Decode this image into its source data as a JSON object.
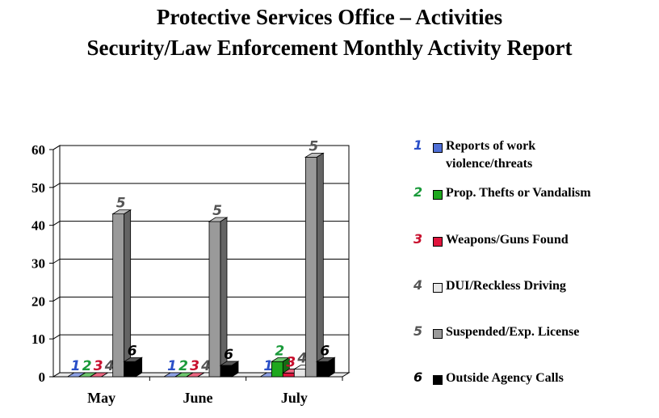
{
  "title": {
    "line1": "Protective Services Office – Activities",
    "line2": "Security/Law Enforcement Monthly Activity Report"
  },
  "chart_data": {
    "type": "bar",
    "style": "3d-clustered",
    "categories": [
      "May",
      "June",
      "July"
    ],
    "ylim": [
      0,
      60
    ],
    "yticks": [
      0,
      10,
      20,
      30,
      40,
      50,
      60
    ],
    "grid": true,
    "legend_position": "right",
    "series": [
      {
        "id": "1",
        "name": "Reports of work violence/threats",
        "color": "#4f6fd6",
        "label_color": "#2a4fc8",
        "values": [
          0,
          0,
          0
        ]
      },
      {
        "id": "2",
        "name": "Prop. Thefts or Vandalism",
        "color": "#1fa81f",
        "label_color": "#1a9a3a",
        "values": [
          0,
          0,
          4
        ]
      },
      {
        "id": "3",
        "name": "Weapons/Guns Found",
        "color": "#e0143c",
        "label_color": "#c8102e",
        "values": [
          0,
          0,
          1
        ]
      },
      {
        "id": "4",
        "name": "DUI/Reckless Driving",
        "color": "#e6e6e6",
        "label_color": "#555555",
        "values": [
          0,
          0,
          2
        ]
      },
      {
        "id": "5",
        "name": "Suspended/Exp. License",
        "color": "#9a9a9a",
        "label_color": "#555555",
        "values": [
          43,
          41,
          58
        ]
      },
      {
        "id": "6",
        "name": "Outside Agency Calls",
        "color": "#000000",
        "label_color": "#000000",
        "values": [
          4,
          3,
          4
        ]
      }
    ]
  }
}
